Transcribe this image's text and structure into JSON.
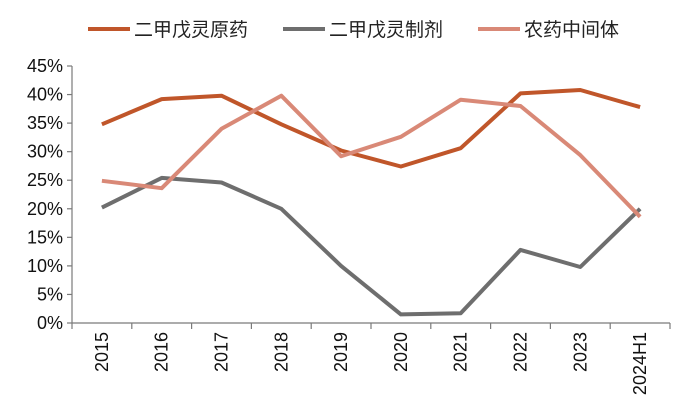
{
  "chart_data": {
    "type": "line",
    "categories": [
      "2015",
      "2016",
      "2017",
      "2018",
      "2019",
      "2020",
      "2021",
      "2022",
      "2023",
      "2024H1"
    ],
    "series": [
      {
        "name": "二甲戊灵原药",
        "color": "#c0562a",
        "values": [
          34.8,
          39.2,
          39.8,
          34.8,
          30.2,
          27.4,
          30.6,
          40.2,
          40.8,
          37.8
        ]
      },
      {
        "name": "二甲戊灵制剂",
        "color": "#6e6e6e",
        "values": [
          20.2,
          25.4,
          24.6,
          20.0,
          10.0,
          1.5,
          1.7,
          12.8,
          9.8,
          20.0
        ]
      },
      {
        "name": "农药中间体",
        "color": "#d98977",
        "values": [
          24.9,
          23.6,
          34.0,
          39.8,
          29.2,
          32.6,
          39.1,
          38.0,
          29.4,
          18.6
        ]
      }
    ],
    "ylim": [
      0,
      45
    ],
    "yticks": [
      0,
      5,
      10,
      15,
      20,
      25,
      30,
      35,
      40,
      45
    ],
    "ytick_labels": [
      "0%",
      "5%",
      "10%",
      "15%",
      "20%",
      "25%",
      "30%",
      "35%",
      "40%",
      "45%"
    ],
    "legend_position": "top",
    "grid": false,
    "title": "",
    "xlabel": "",
    "ylabel": ""
  }
}
